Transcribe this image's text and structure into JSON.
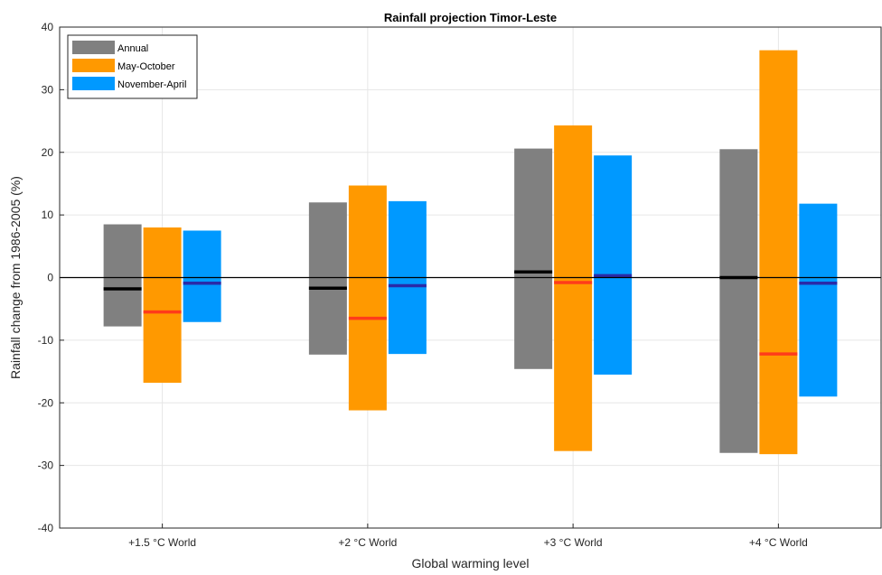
{
  "chart_data": {
    "type": "bar",
    "title": "Rainfall projection Timor-Leste",
    "xlabel": "Global warming level",
    "ylabel": "Rainfall change from 1986-2005 (%)",
    "ylim": [
      -40,
      40
    ],
    "yticks": [
      -40,
      -30,
      -20,
      -10,
      0,
      10,
      20,
      30,
      40
    ],
    "yticklabels": [
      "-40",
      "-30",
      "-20",
      "-10",
      "0",
      "10",
      "20",
      "30",
      "40"
    ],
    "categories": [
      "+1.5 °C World",
      "+2 °C World",
      "+3 °C World",
      "+4 °C World"
    ],
    "grid": true,
    "legend_position": "top-left",
    "zero_line": true,
    "series": [
      {
        "name": "Annual",
        "color": "#808080",
        "median_color": "#000000",
        "low": [
          -7.8,
          -12.3,
          -14.6,
          -28.0
        ],
        "high": [
          8.5,
          12.0,
          20.6,
          20.5
        ],
        "median": [
          -1.8,
          -1.7,
          0.9,
          0.0
        ]
      },
      {
        "name": "May-October",
        "color": "#ff9900",
        "median_color": "#ff3b1a",
        "low": [
          -16.8,
          -21.2,
          -27.7,
          -28.2
        ],
        "high": [
          8.0,
          14.7,
          24.3,
          36.3
        ],
        "median": [
          -5.5,
          -6.5,
          -0.8,
          -12.2
        ]
      },
      {
        "name": "November-April",
        "color": "#0099ff",
        "median_color": "#2a2aa8",
        "low": [
          -7.1,
          -12.2,
          -15.5,
          -19.0
        ],
        "high": [
          7.5,
          12.2,
          19.5,
          11.8
        ],
        "median": [
          -0.9,
          -1.3,
          0.3,
          -0.9
        ]
      }
    ]
  }
}
